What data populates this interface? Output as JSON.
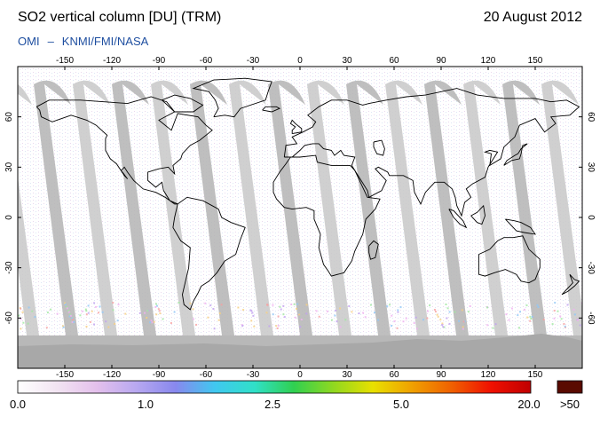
{
  "header": {
    "title": "SO2 vertical column [DU] (TRM)",
    "date": "20 August 2012",
    "source_instrument": "OMI",
    "source_separator": "–",
    "source_orgs": "KNMI/FMI/NASA"
  },
  "map": {
    "projection": "equirectangular",
    "lon_range": [
      -180,
      180
    ],
    "lat_range": [
      -90,
      90
    ],
    "top_lon_ticks": [
      "-150",
      "-120",
      "-90",
      "-60",
      "-30",
      "0",
      "30",
      "60",
      "90",
      "120",
      "150"
    ],
    "bottom_lon_ticks": [
      "-150",
      "-120",
      "-90",
      "-60",
      "-30",
      "0",
      "30",
      "60",
      "90",
      "120",
      "150"
    ],
    "left_lat_ticks": [
      "60",
      "30",
      "0",
      "-30",
      "-60"
    ],
    "right_lat_ticks": [
      "60",
      "30",
      "0",
      "-30",
      "-60"
    ],
    "orbit_swath_color": "#c8c8c8",
    "no_data_color": "#a8a8a8",
    "coastline_color": "#000000"
  },
  "colorbar": {
    "labels": [
      "0.0",
      "1.0",
      "2.5",
      "5.0",
      "20.0"
    ],
    "overflow_label": ">50",
    "overflow_color": "#5a0a00",
    "gradient_stops": [
      "#ffffff",
      "#f2e4f2",
      "#e4c0ec",
      "#b8a8f0",
      "#8888ee",
      "#40c8f0",
      "#30e0c8",
      "#30d050",
      "#90d820",
      "#e8e000",
      "#f0a000",
      "#f06000",
      "#f01000",
      "#c00000"
    ]
  }
}
